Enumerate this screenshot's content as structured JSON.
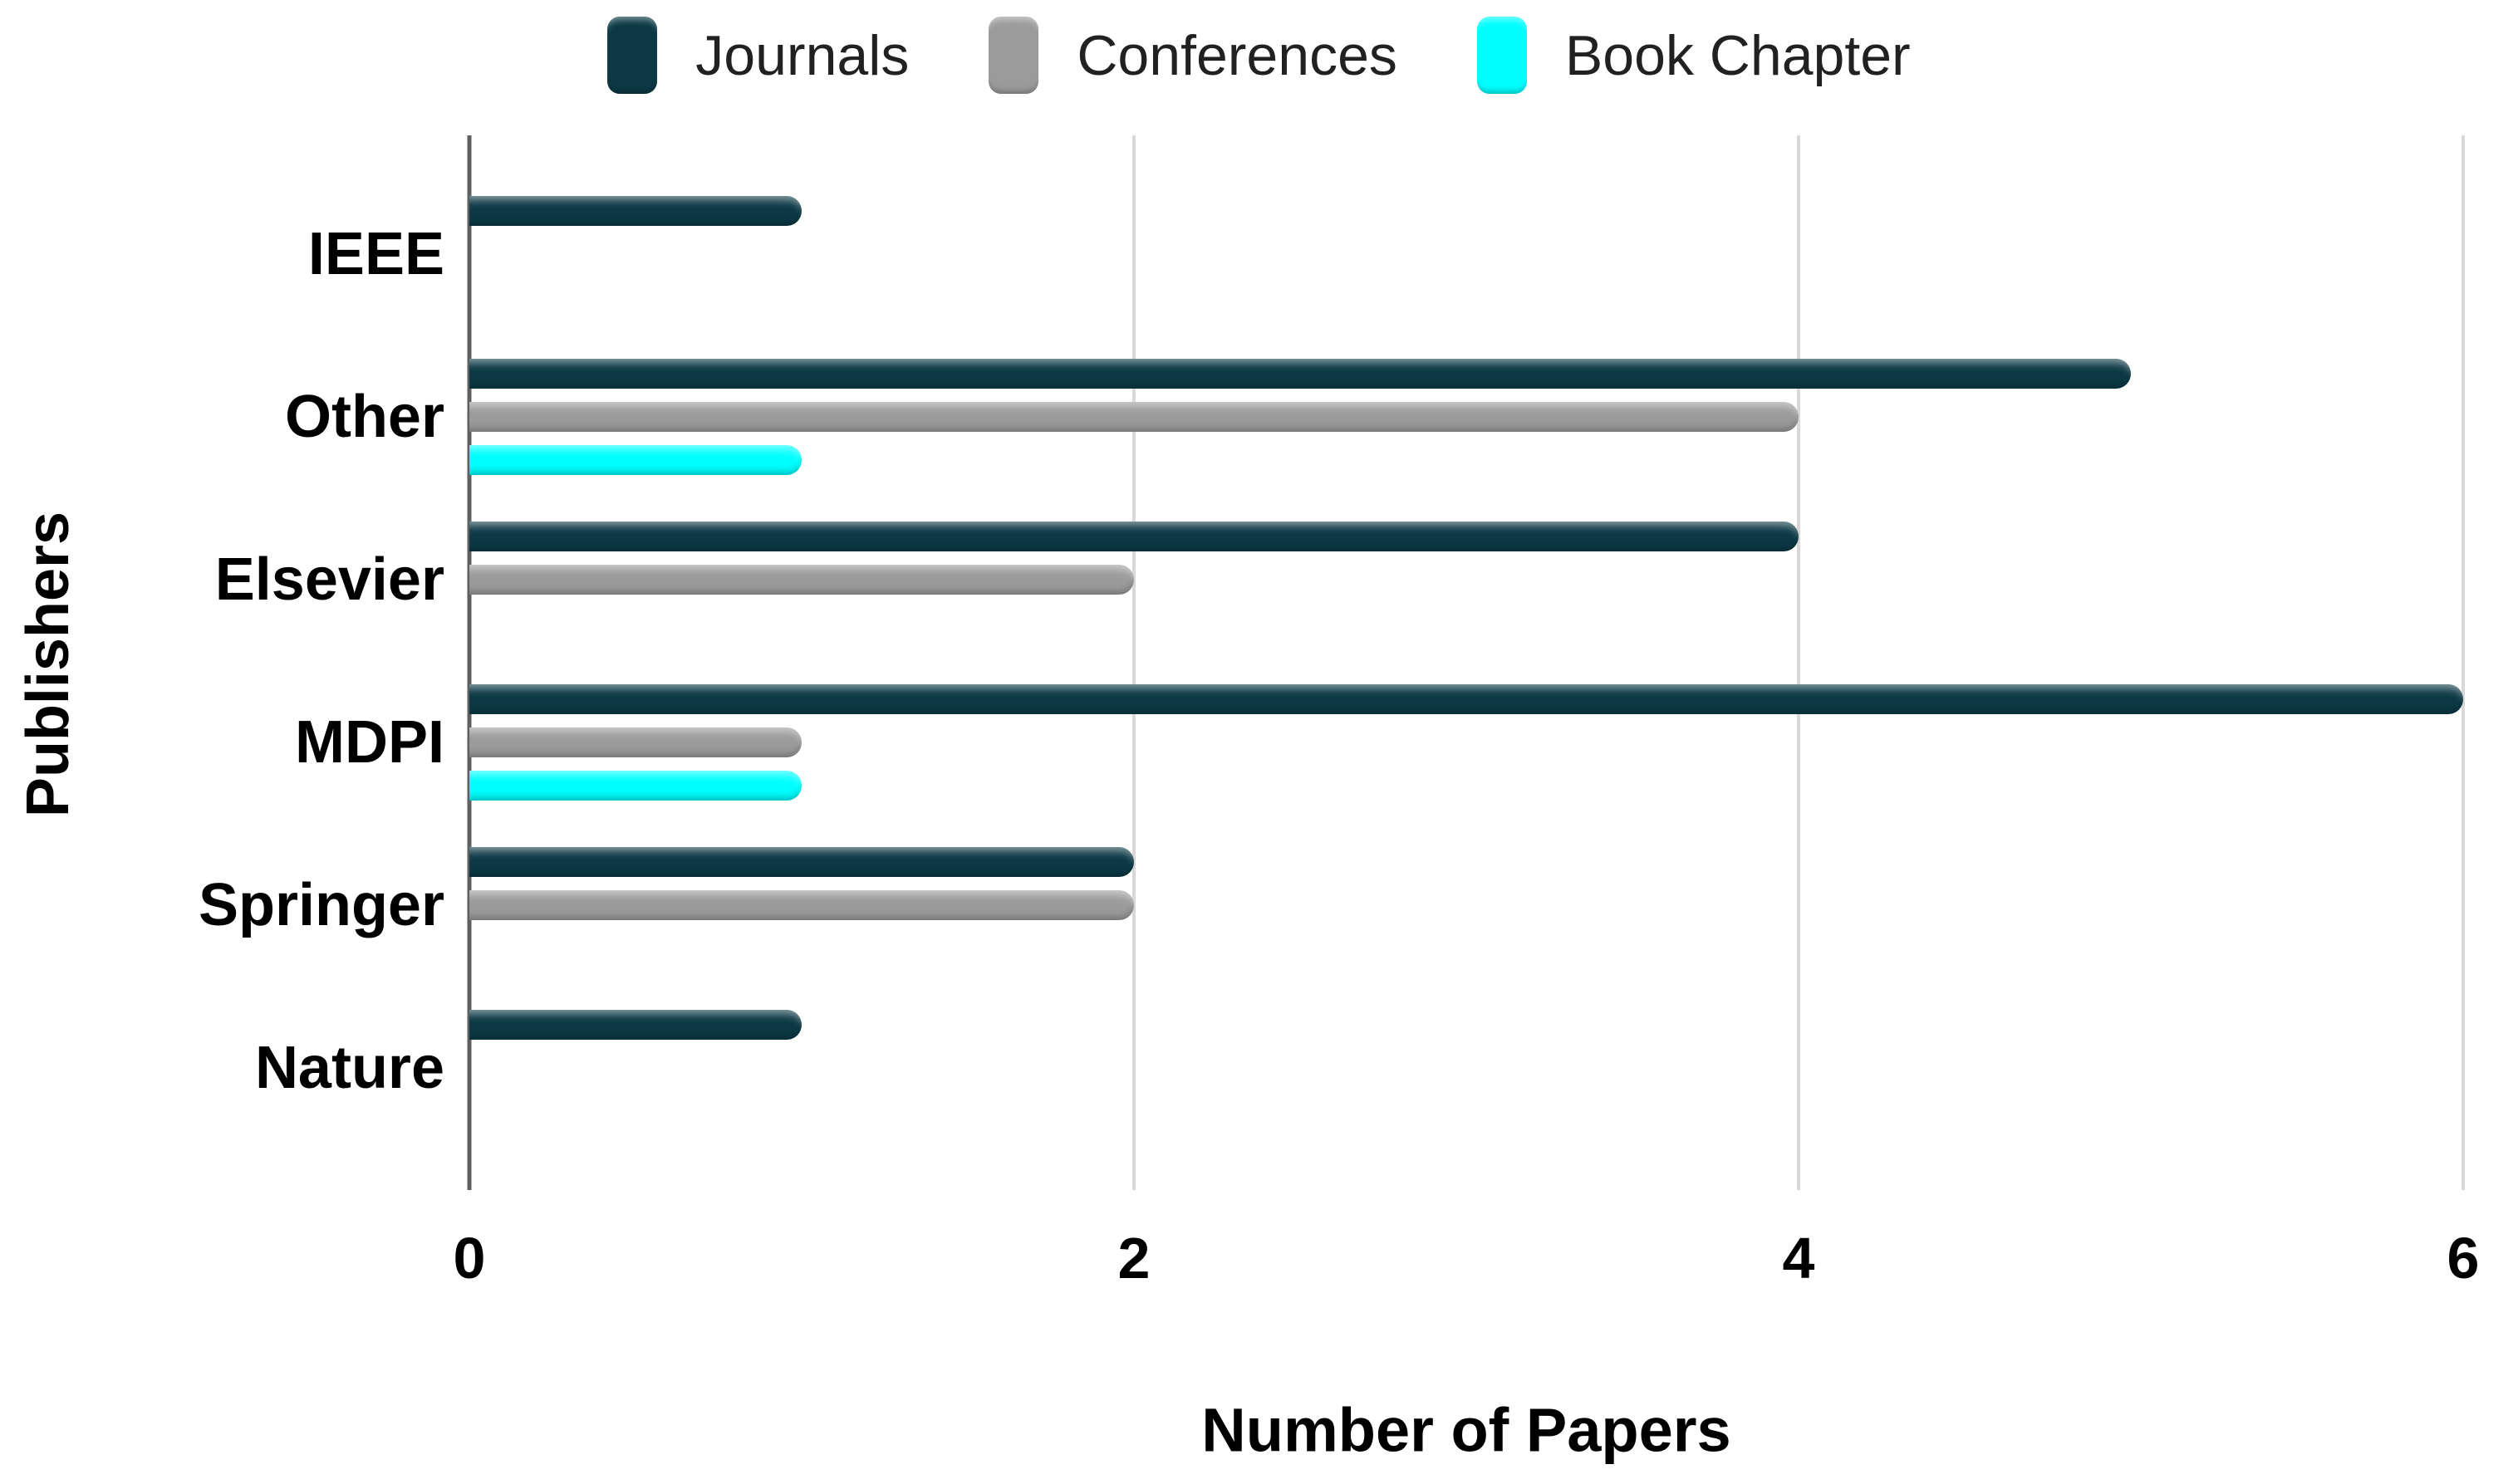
{
  "chart_data": {
    "type": "bar",
    "orientation": "horizontal",
    "title": "",
    "xlabel": "Number of Papers",
    "ylabel": "Publishers",
    "categories": [
      "IEEE",
      "Other",
      "Elsevier",
      "MDPI",
      "Springer",
      "Nature"
    ],
    "series": [
      {
        "name": "Journals",
        "color": "#0c3945",
        "values": [
          1,
          5,
          4,
          6,
          2,
          1
        ]
      },
      {
        "name": "Conferences",
        "color": "#9b9b9b",
        "values": [
          0,
          4,
          2,
          1,
          2,
          0
        ]
      },
      {
        "name": "Book Chapter",
        "color": "#00ffff",
        "values": [
          0,
          1,
          0,
          1,
          0,
          0
        ]
      }
    ],
    "xlim": [
      0,
      6
    ],
    "xticks": [
      0,
      2,
      4,
      6
    ],
    "grid": "vertical-gridlines",
    "legend_position": "top-center"
  },
  "colors": {
    "background": "#ffffff",
    "gridline": "#d8d8d8",
    "axis_line": "#5f5f5f",
    "text": "#000000",
    "legend_text": "#212121"
  }
}
